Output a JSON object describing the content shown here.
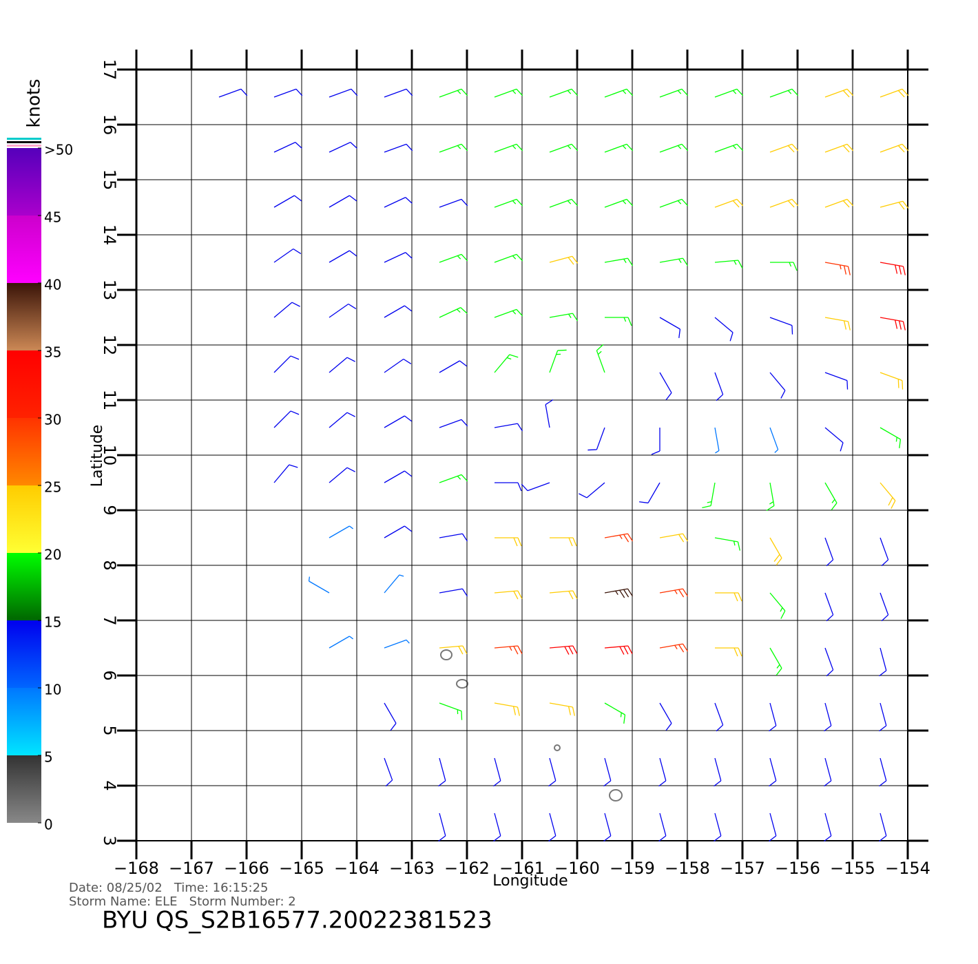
{
  "axes": {
    "xlabel": "Longitude",
    "ylabel": "Latitude",
    "xlim": [
      -168,
      -154
    ],
    "ylim": [
      3,
      17
    ],
    "xticks": [
      {
        "value": -168,
        "label": "−168"
      },
      {
        "value": -167,
        "label": "−167"
      },
      {
        "value": -166,
        "label": "−166"
      },
      {
        "value": -165,
        "label": "−165"
      },
      {
        "value": -164,
        "label": "−164"
      },
      {
        "value": -163,
        "label": "−163"
      },
      {
        "value": -162,
        "label": "−162"
      },
      {
        "value": -161,
        "label": "−161"
      },
      {
        "value": -160,
        "label": "−160"
      },
      {
        "value": -159,
        "label": "−159"
      },
      {
        "value": -158,
        "label": "−158"
      },
      {
        "value": -157,
        "label": "−157"
      },
      {
        "value": -156,
        "label": "−156"
      },
      {
        "value": -155,
        "label": "−155"
      },
      {
        "value": -154,
        "label": "−154"
      }
    ],
    "yticks": [
      3,
      4,
      5,
      6,
      7,
      8,
      9,
      10,
      11,
      12,
      13,
      14,
      15,
      16,
      17
    ]
  },
  "colorbar": {
    "title": "knots",
    "lim": [
      0,
      50
    ],
    "ticks": [
      0,
      5,
      10,
      15,
      20,
      25,
      30,
      35,
      40,
      45,
      {
        "value": 50,
        "label": ">50"
      }
    ],
    "bands": [
      [
        "#888888",
        "#333333"
      ],
      [
        "#00e5ff",
        "#0077ff"
      ],
      [
        "#0066ff",
        "#0000ee"
      ],
      [
        "#006600",
        "#00ff00"
      ],
      [
        "#ffff33",
        "#ffcc00"
      ],
      [
        "#ff8800",
        "#ff3300"
      ],
      [
        "#ff2200",
        "#ff0000"
      ],
      [
        "#cc8855",
        "#3a1408"
      ],
      [
        "#ff00ff",
        "#cc00cc"
      ],
      [
        "#aa00cc",
        "#5500bb"
      ]
    ]
  },
  "wind": {
    "lons": [
      -167.5,
      -166.5,
      -165.5,
      -164.5,
      -163.5,
      -162.5,
      -161.5,
      -160.5,
      -159.5,
      -158.5,
      -157.5,
      -156.5,
      -155.5,
      -154.5
    ],
    "lats": [
      16.5,
      15.5,
      14.5,
      13.5,
      12.5,
      11.5,
      10.5,
      9.5,
      8.5,
      7.5,
      6.5,
      5.5,
      4.5,
      3.5
    ],
    "speed": [
      [
        null,
        12,
        12,
        13,
        14,
        16,
        17,
        17,
        16,
        16,
        17,
        18,
        20,
        20
      ],
      [
        null,
        null,
        11,
        12,
        13,
        15,
        16,
        17,
        18,
        18,
        19,
        21,
        22,
        22
      ],
      [
        null,
        null,
        10,
        11,
        12,
        14,
        16,
        18,
        18,
        19,
        20,
        20,
        21,
        23
      ],
      [
        null,
        null,
        10,
        11,
        13,
        15,
        17,
        20,
        18,
        17,
        16,
        18,
        25,
        30
      ],
      [
        null,
        null,
        11,
        11,
        12,
        15,
        17,
        18,
        17,
        13,
        12,
        13,
        24,
        30
      ],
      [
        null,
        null,
        11,
        12,
        13,
        14,
        16,
        18,
        16,
        12,
        10,
        11,
        14,
        22
      ],
      [
        null,
        null,
        11,
        12,
        13,
        12,
        14,
        11,
        12,
        13,
        9,
        7,
        14,
        18
      ],
      [
        null,
        null,
        10,
        12,
        13,
        15,
        12,
        10,
        13,
        14,
        16,
        17,
        18,
        21
      ],
      [
        null,
        null,
        null,
        8,
        10,
        14,
        20,
        22,
        27,
        24,
        19,
        20,
        14,
        13
      ],
      [
        null,
        null,
        null,
        7,
        6,
        14,
        22,
        24,
        36,
        28,
        21,
        19,
        13,
        12
      ],
      [
        null,
        null,
        null,
        5,
        8,
        22,
        27,
        30,
        30,
        27,
        22,
        17,
        12,
        11
      ],
      [
        null,
        null,
        null,
        null,
        12,
        18,
        22,
        24,
        17,
        14,
        13,
        12,
        11,
        11
      ],
      [
        null,
        null,
        null,
        null,
        12,
        13,
        14,
        13,
        12,
        12,
        12,
        12,
        11,
        11
      ],
      [
        null,
        null,
        null,
        null,
        null,
        12,
        12,
        12,
        12,
        12,
        11,
        11,
        11,
        11
      ]
    ],
    "direction": [
      [
        null,
        70,
        70,
        70,
        70,
        70,
        70,
        70,
        70,
        70,
        70,
        70,
        70,
        70
      ],
      [
        null,
        null,
        65,
        65,
        70,
        70,
        70,
        70,
        70,
        70,
        70,
        70,
        70,
        70
      ],
      [
        null,
        null,
        60,
        60,
        65,
        70,
        70,
        70,
        70,
        70,
        70,
        70,
        70,
        75
      ],
      [
        null,
        null,
        55,
        60,
        65,
        70,
        70,
        75,
        80,
        80,
        85,
        90,
        100,
        100
      ],
      [
        null,
        null,
        50,
        55,
        60,
        65,
        70,
        80,
        90,
        120,
        130,
        110,
        100,
        100
      ],
      [
        null,
        null,
        45,
        50,
        55,
        60,
        40,
        20,
        340,
        150,
        160,
        140,
        110,
        110
      ],
      [
        null,
        null,
        45,
        50,
        60,
        70,
        80,
        350,
        200,
        180,
        170,
        160,
        130,
        120
      ],
      [
        null,
        null,
        40,
        50,
        60,
        70,
        90,
        250,
        230,
        210,
        190,
        170,
        150,
        140
      ],
      [
        null,
        null,
        null,
        60,
        60,
        80,
        90,
        90,
        80,
        80,
        100,
        150,
        160,
        160
      ],
      [
        null,
        null,
        null,
        300,
        40,
        80,
        85,
        85,
        80,
        80,
        90,
        140,
        160,
        160
      ],
      [
        null,
        null,
        null,
        60,
        70,
        85,
        85,
        85,
        85,
        80,
        90,
        150,
        160,
        165
      ],
      [
        null,
        null,
        null,
        null,
        150,
        110,
        100,
        100,
        120,
        150,
        160,
        165,
        165,
        165
      ],
      [
        null,
        null,
        null,
        null,
        160,
        165,
        165,
        165,
        165,
        165,
        165,
        165,
        165,
        165
      ],
      [
        null,
        null,
        null,
        null,
        null,
        165,
        165,
        165,
        165,
        165,
        165,
        165,
        165,
        165
      ]
    ]
  },
  "info": {
    "line1": "Date: 08/25/02   Time: 16:15:25",
    "line2": "Storm Name: ELE   Storm Number: 2",
    "title": "BYU QS_S2B16577.20022381523"
  }
}
